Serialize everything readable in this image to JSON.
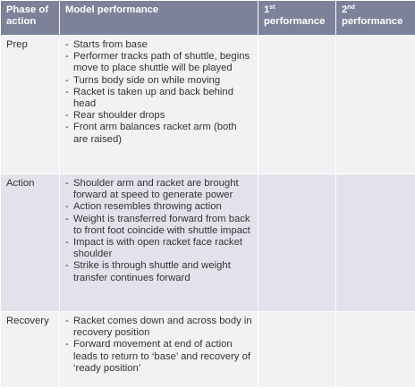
{
  "table": {
    "header": {
      "phase": "Phase of action",
      "model": "Model performance",
      "first": {
        "number": "1",
        "suffix": "st",
        "word": "performance"
      },
      "second": {
        "number": "2",
        "suffix": "nd",
        "word": "performance"
      }
    },
    "rows": [
      {
        "phase": "Prep",
        "points": [
          "Starts from base",
          "Performer tracks path of shuttle, begins move to place shuttle will be played",
          "Turns body side on while moving",
          "Racket is taken up and back behind head",
          "Rear shoulder drops",
          "Front arm balances racket arm (both are raised)"
        ]
      },
      {
        "phase": "Action",
        "points": [
          "Shoulder arm and racket are brought forward at speed to generate power",
          "Action resembles throwing action",
          "Weight is transferred forward from back to front foot coincide with shuttle impact",
          "Impact is with open racket face racket shoulder",
          "Strike is through shuttle and weight transfer continues forward"
        ]
      },
      {
        "phase": "Recovery",
        "points": [
          "Racket comes down and across body in recovery position",
          "Forward movement at end of action leads to return to ‘base’ and recovery of ‘ready position’"
        ]
      }
    ]
  }
}
